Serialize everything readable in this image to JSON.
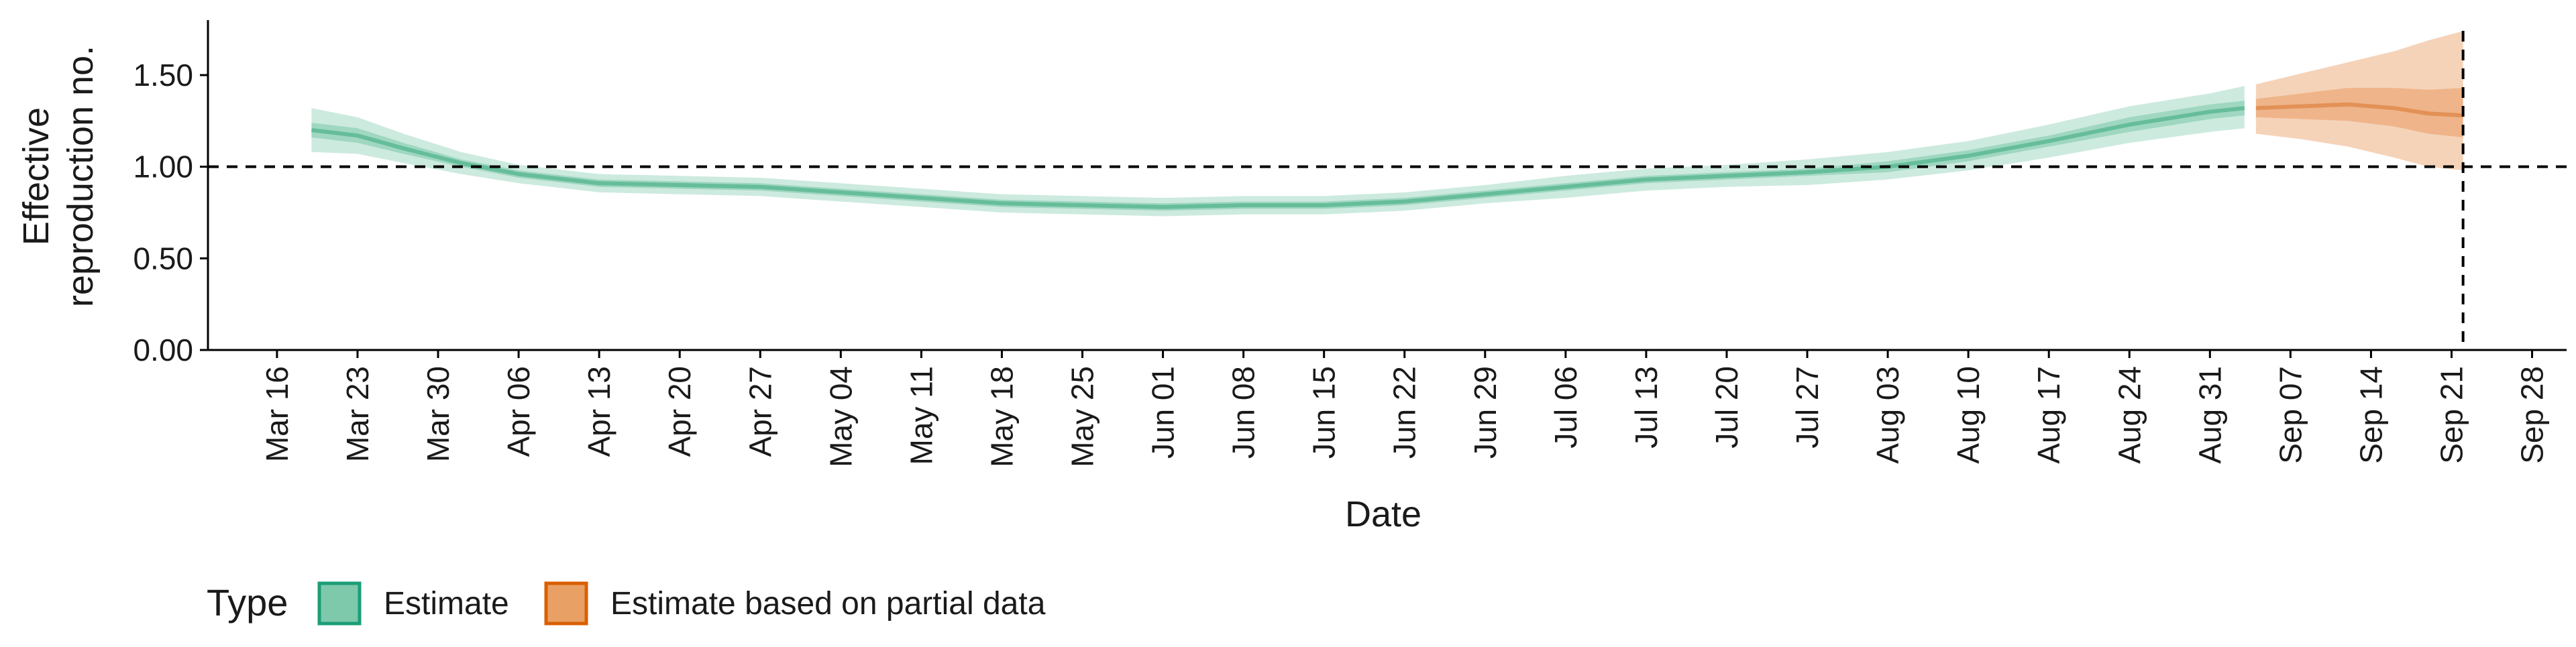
{
  "chart_data": {
    "type": "area",
    "xlabel": "Date",
    "ylabel_lines": [
      "Effective",
      "reproduction no."
    ],
    "ylim": [
      0,
      1.8
    ],
    "y_ticks": [
      "0.00",
      "0.50",
      "1.00",
      "1.50"
    ],
    "y_tick_values": [
      0,
      0.5,
      1.0,
      1.5
    ],
    "x_range": [
      "2020-03-10",
      "2020-10-01"
    ],
    "x_ticks": [
      "Mar 16",
      "Mar 23",
      "Mar 30",
      "Apr 06",
      "Apr 13",
      "Apr 20",
      "Apr 27",
      "May 04",
      "May 11",
      "May 18",
      "May 25",
      "Jun 01",
      "Jun 08",
      "Jun 15",
      "Jun 22",
      "Jun 29",
      "Jul 06",
      "Jul 13",
      "Jul 20",
      "Jul 27",
      "Aug 03",
      "Aug 10",
      "Aug 17",
      "Aug 24",
      "Aug 31",
      "Sep 07",
      "Sep 14",
      "Sep 21",
      "Sep 28"
    ],
    "x_tick_dates": [
      "2020-03-16",
      "2020-03-23",
      "2020-03-30",
      "2020-04-06",
      "2020-04-13",
      "2020-04-20",
      "2020-04-27",
      "2020-05-04",
      "2020-05-11",
      "2020-05-18",
      "2020-05-25",
      "2020-06-01",
      "2020-06-08",
      "2020-06-15",
      "2020-06-22",
      "2020-06-29",
      "2020-07-06",
      "2020-07-13",
      "2020-07-20",
      "2020-07-27",
      "2020-08-03",
      "2020-08-10",
      "2020-08-17",
      "2020-08-24",
      "2020-08-31",
      "2020-09-07",
      "2020-09-14",
      "2020-09-21",
      "2020-09-28"
    ],
    "reference_lines": {
      "y": 1.0,
      "x": "2020-09-22"
    },
    "legend": {
      "title": "Type",
      "position": "bottom-left",
      "entries": [
        {
          "label": "Estimate",
          "fill": "#7ec8ac",
          "border": "#1b9e77"
        },
        {
          "label": "Estimate based on partial data",
          "fill": "#e8a064",
          "border": "#d95f02"
        }
      ]
    },
    "series": [
      {
        "name": "Estimate",
        "colors": {
          "outer": "#cdeadf",
          "inner": "#9fd7c1",
          "median": "#66bd9a"
        },
        "points": [
          {
            "x": "2020-03-19",
            "median": 1.2,
            "lo90": 1.08,
            "hi90": 1.32,
            "lo50": 1.16,
            "hi50": 1.24
          },
          {
            "x": "2020-03-23",
            "median": 1.17,
            "lo90": 1.07,
            "hi90": 1.27,
            "lo50": 1.13,
            "hi50": 1.21
          },
          {
            "x": "2020-03-27",
            "median": 1.1,
            "lo90": 1.02,
            "hi90": 1.18,
            "lo50": 1.07,
            "hi50": 1.13
          },
          {
            "x": "2020-04-01",
            "median": 1.02,
            "lo90": 0.96,
            "hi90": 1.08,
            "lo50": 1.0,
            "hi50": 1.04
          },
          {
            "x": "2020-04-06",
            "median": 0.96,
            "lo90": 0.91,
            "hi90": 1.01,
            "lo50": 0.94,
            "hi50": 0.98
          },
          {
            "x": "2020-04-13",
            "median": 0.91,
            "lo90": 0.86,
            "hi90": 0.96,
            "lo50": 0.89,
            "hi50": 0.93
          },
          {
            "x": "2020-04-20",
            "median": 0.9,
            "lo90": 0.85,
            "hi90": 0.95,
            "lo50": 0.88,
            "hi50": 0.92
          },
          {
            "x": "2020-04-27",
            "median": 0.89,
            "lo90": 0.84,
            "hi90": 0.94,
            "lo50": 0.87,
            "hi50": 0.91
          },
          {
            "x": "2020-05-04",
            "median": 0.86,
            "lo90": 0.81,
            "hi90": 0.91,
            "lo50": 0.84,
            "hi50": 0.88
          },
          {
            "x": "2020-05-11",
            "median": 0.83,
            "lo90": 0.78,
            "hi90": 0.88,
            "lo50": 0.81,
            "hi50": 0.85
          },
          {
            "x": "2020-05-18",
            "median": 0.8,
            "lo90": 0.75,
            "hi90": 0.85,
            "lo50": 0.78,
            "hi50": 0.82
          },
          {
            "x": "2020-05-25",
            "median": 0.79,
            "lo90": 0.74,
            "hi90": 0.84,
            "lo50": 0.77,
            "hi50": 0.81
          },
          {
            "x": "2020-06-01",
            "median": 0.78,
            "lo90": 0.73,
            "hi90": 0.83,
            "lo50": 0.76,
            "hi50": 0.8
          },
          {
            "x": "2020-06-08",
            "median": 0.79,
            "lo90": 0.74,
            "hi90": 0.84,
            "lo50": 0.77,
            "hi50": 0.81
          },
          {
            "x": "2020-06-15",
            "median": 0.79,
            "lo90": 0.74,
            "hi90": 0.84,
            "lo50": 0.77,
            "hi50": 0.81
          },
          {
            "x": "2020-06-22",
            "median": 0.81,
            "lo90": 0.76,
            "hi90": 0.86,
            "lo50": 0.79,
            "hi50": 0.83
          },
          {
            "x": "2020-06-29",
            "median": 0.85,
            "lo90": 0.8,
            "hi90": 0.9,
            "lo50": 0.83,
            "hi50": 0.87
          },
          {
            "x": "2020-07-06",
            "median": 0.89,
            "lo90": 0.83,
            "hi90": 0.95,
            "lo50": 0.87,
            "hi50": 0.91
          },
          {
            "x": "2020-07-13",
            "median": 0.93,
            "lo90": 0.87,
            "hi90": 0.99,
            "lo50": 0.91,
            "hi50": 0.95
          },
          {
            "x": "2020-07-20",
            "median": 0.95,
            "lo90": 0.89,
            "hi90": 1.01,
            "lo50": 0.93,
            "hi50": 0.97
          },
          {
            "x": "2020-07-27",
            "median": 0.97,
            "lo90": 0.9,
            "hi90": 1.04,
            "lo50": 0.95,
            "hi50": 0.99
          },
          {
            "x": "2020-08-03",
            "median": 1.0,
            "lo90": 0.93,
            "hi90": 1.08,
            "lo50": 0.97,
            "hi50": 1.03
          },
          {
            "x": "2020-08-10",
            "median": 1.06,
            "lo90": 0.98,
            "hi90": 1.14,
            "lo50": 1.03,
            "hi50": 1.09
          },
          {
            "x": "2020-08-17",
            "median": 1.14,
            "lo90": 1.05,
            "hi90": 1.23,
            "lo50": 1.11,
            "hi50": 1.17
          },
          {
            "x": "2020-08-24",
            "median": 1.23,
            "lo90": 1.13,
            "hi90": 1.33,
            "lo50": 1.19,
            "hi50": 1.27
          },
          {
            "x": "2020-08-31",
            "median": 1.3,
            "lo90": 1.19,
            "hi90": 1.4,
            "lo50": 1.26,
            "hi50": 1.34
          },
          {
            "x": "2020-09-03",
            "median": 1.32,
            "lo90": 1.21,
            "hi90": 1.44,
            "lo50": 1.28,
            "hi50": 1.36
          }
        ]
      },
      {
        "name": "Estimate based on partial data",
        "colors": {
          "outer": "#f5d3b9",
          "inner": "#efb489",
          "median": "#e39157"
        },
        "points": [
          {
            "x": "2020-09-04",
            "median": 1.32,
            "lo90": 1.18,
            "hi90": 1.45,
            "lo50": 1.27,
            "hi50": 1.37
          },
          {
            "x": "2020-09-08",
            "median": 1.33,
            "lo90": 1.15,
            "hi90": 1.51,
            "lo50": 1.26,
            "hi50": 1.4
          },
          {
            "x": "2020-09-12",
            "median": 1.34,
            "lo90": 1.11,
            "hi90": 1.57,
            "lo50": 1.25,
            "hi50": 1.43
          },
          {
            "x": "2020-09-16",
            "median": 1.32,
            "lo90": 1.05,
            "hi90": 1.63,
            "lo50": 1.22,
            "hi50": 1.43
          },
          {
            "x": "2020-09-19",
            "median": 1.29,
            "lo90": 1.0,
            "hi90": 1.69,
            "lo50": 1.18,
            "hi50": 1.42
          },
          {
            "x": "2020-09-22",
            "median": 1.28,
            "lo90": 0.98,
            "hi90": 1.74,
            "lo50": 1.16,
            "hi50": 1.43
          }
        ]
      }
    ]
  }
}
